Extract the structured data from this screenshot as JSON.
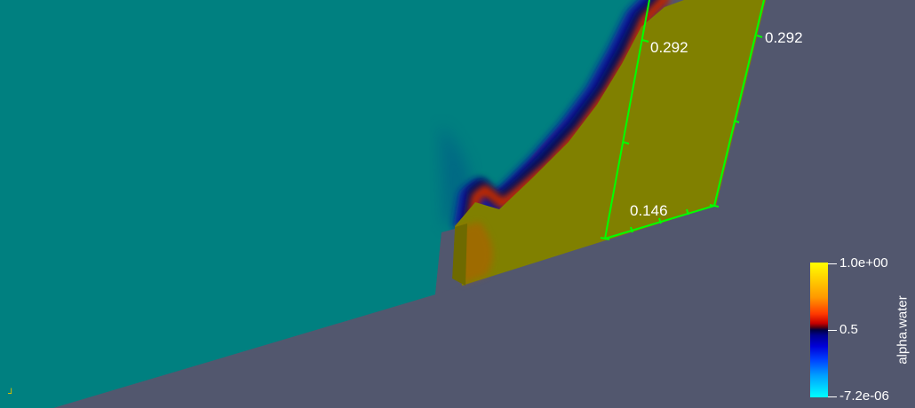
{
  "viewport": {
    "background": "#52576e",
    "field_color": "#008080",
    "water_color": "#808000"
  },
  "rulers": [
    {
      "label": "0.292",
      "color": "#00ff00"
    },
    {
      "label": "0.292",
      "color": "#00ff00"
    },
    {
      "label": "0.146",
      "color": "#00ff00"
    }
  ],
  "colorbar": {
    "title": "alpha.water",
    "max_label": "1.0e+00",
    "mid_label": "0.5",
    "min_label": "-7.2e-06"
  },
  "axes_glyph": {
    "label": "⅃",
    "icon": "orientation-axes-icon"
  }
}
